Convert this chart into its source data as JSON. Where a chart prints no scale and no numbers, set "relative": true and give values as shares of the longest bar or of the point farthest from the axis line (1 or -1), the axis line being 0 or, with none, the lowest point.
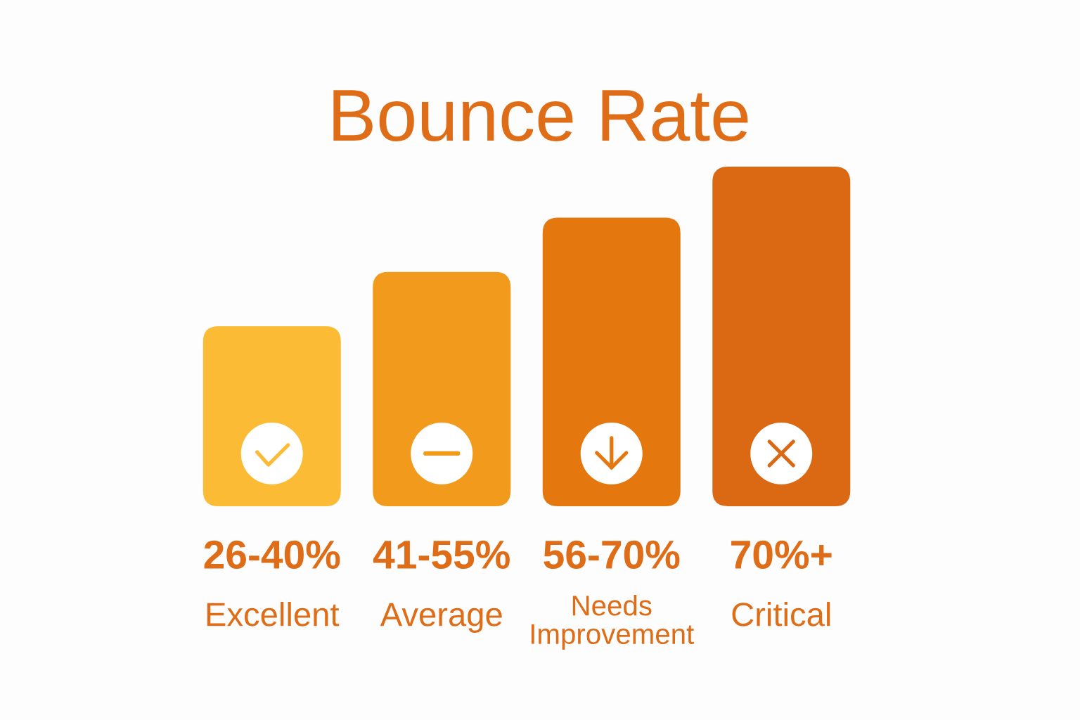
{
  "chart_data": {
    "type": "bar",
    "title": "Bounce Rate",
    "categories": [
      "26-40%",
      "41-55%",
      "56-70%",
      "70%+"
    ],
    "values": [
      0.53,
      0.69,
      0.85,
      1
    ],
    "colors": [
      "#fbbb34",
      "#f29a1c",
      "#e4780f",
      "#db6812"
    ],
    "relative": true,
    "annotations": [
      "Excellent",
      "Average",
      "Needs\nImprovement",
      "Critical"
    ]
  }
}
